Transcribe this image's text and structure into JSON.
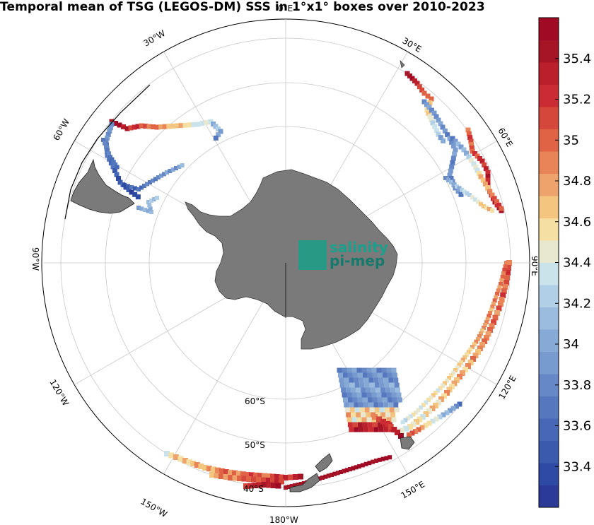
{
  "title": "Temporal mean of TSG (LEGOS-DM) SSS in 1°x1° boxes over 2010-2023",
  "longitude_labels": [
    {
      "text": "0°E",
      "name": "lon-label-0e"
    },
    {
      "text": "30°E",
      "name": "lon-label-30e"
    },
    {
      "text": "60°E",
      "name": "lon-label-60e"
    },
    {
      "text": "90°E",
      "name": "lon-label-90e"
    },
    {
      "text": "120°E",
      "name": "lon-label-120e"
    },
    {
      "text": "150°E",
      "name": "lon-label-150e"
    },
    {
      "text": "180°W",
      "name": "lon-label-180w"
    },
    {
      "text": "150°W",
      "name": "lon-label-150w"
    },
    {
      "text": "120°W",
      "name": "lon-label-120w"
    },
    {
      "text": "90°W",
      "name": "lon-label-90w"
    },
    {
      "text": "60°W",
      "name": "lon-label-60w"
    },
    {
      "text": "30°W",
      "name": "lon-label-30w"
    }
  ],
  "latitude_labels": [
    "60°S",
    "50°S",
    "40°S"
  ],
  "colorbar": {
    "tick_labels": [
      "35.4",
      "35.2",
      "35",
      "34.8",
      "34.6",
      "34.4",
      "34.2",
      "34",
      "33.8",
      "33.6",
      "33.4"
    ],
    "min": 33.2,
    "max": 35.6,
    "colors": [
      "#2b3a96",
      "#2f4aa2",
      "#3a5bad",
      "#4668b6",
      "#5577be",
      "#6688c6",
      "#779acf",
      "#86a9d6",
      "#9bbcdf",
      "#b1cfe6",
      "#cae3eb",
      "#e8e7cf",
      "#f6dfa2",
      "#f3c57e",
      "#eea36c",
      "#e88458",
      "#e06345",
      "#d6473b",
      "#cb2b32",
      "#bb1f2c",
      "#a51526",
      "#a00a25"
    ]
  },
  "logo": {
    "line1": "salinity",
    "line2": "pi-mep"
  },
  "map_data": {
    "projection": "south-polar-stereographic",
    "variable": "sea surface salinity"
  }
}
